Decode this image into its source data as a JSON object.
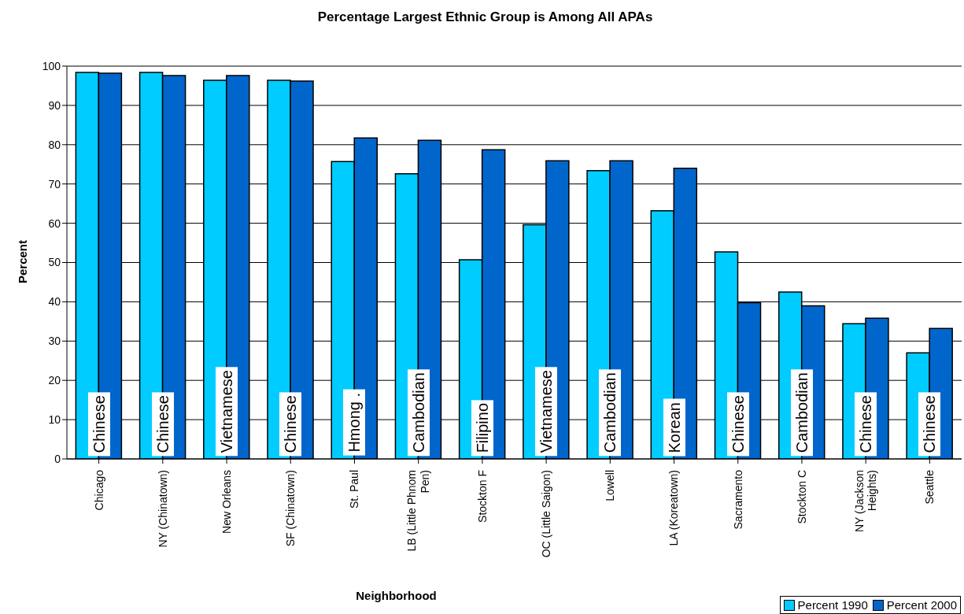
{
  "chart_data": {
    "type": "bar",
    "title": "Percentage Largest Ethnic Group is Among All APAs",
    "xlabel": "Neighborhood",
    "ylabel": "Percent",
    "categories": [
      "Chicago",
      "NY (Chinatown)",
      "New Orleans",
      "SF (Chinatown)",
      "St. Paul",
      "LB (Little Phnom Pen)",
      "Stockton F",
      "OC (Little Saigon)",
      "Lowell",
      "LA (Koreatown)",
      "Sacramento",
      "Stockton C",
      "NY (Jackson Heights)",
      "Seattle"
    ],
    "series": [
      {
        "name": "Percent 1990",
        "color": "#00ccff",
        "values": [
          98.4,
          98.4,
          96.4,
          96.4,
          75.7,
          72.6,
          50.7,
          59.6,
          73.4,
          63.2,
          52.7,
          42.5,
          34.4,
          27.0
        ]
      },
      {
        "name": "Percent 2000",
        "color": "#0066cc",
        "values": [
          98.2,
          97.6,
          97.6,
          96.2,
          81.7,
          81.1,
          78.7,
          75.9,
          75.9,
          74.0,
          39.8,
          39.0,
          35.8,
          33.2
        ]
      }
    ],
    "annotations": [
      {
        "text": "Chinese",
        "x": "Chicago"
      },
      {
        "text": "Chinese",
        "x": "NY (Chinatown)"
      },
      {
        "text": "Vietnamese",
        "x": "New Orleans"
      },
      {
        "text": "Chinese",
        "x": "SF (Chinatown)"
      },
      {
        "text": "Hmong .",
        "x": "St. Paul"
      },
      {
        "text": "Cambodian",
        "x": "LB (Little Phnom Pen)"
      },
      {
        "text": "Filipino",
        "x": "Stockton F"
      },
      {
        "text": "Vietnamese",
        "x": "OC (Little Saigon)"
      },
      {
        "text": "Cambodian",
        "x": "Lowell"
      },
      {
        "text": "Korean",
        "x": "LA (Koreatown)"
      },
      {
        "text": "Chinese",
        "x": "Sacramento"
      },
      {
        "text": "Cambodian",
        "x": "Stockton C"
      },
      {
        "text": "Chinese",
        "x": "NY (Jackson Heights)"
      },
      {
        "text": "Chinese",
        "x": "Seattle"
      }
    ],
    "ylim": [
      0,
      100
    ],
    "yticks": [
      0,
      10,
      20,
      30,
      40,
      50,
      60,
      70,
      80,
      90,
      100
    ],
    "grid": "y",
    "legend": "bottom right"
  }
}
